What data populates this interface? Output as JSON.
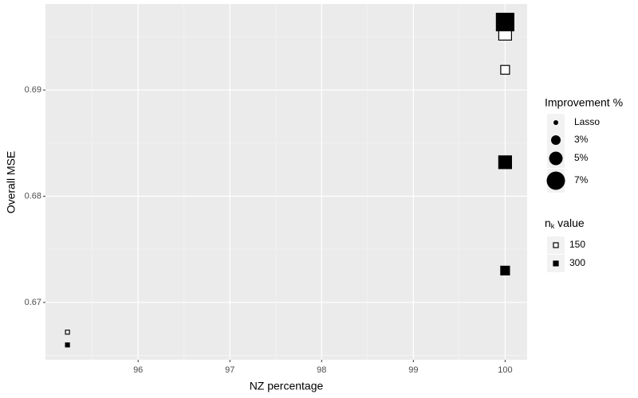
{
  "chart_data": {
    "type": "scatter",
    "x_label": "NZ percentage",
    "y_label": "Overall MSE",
    "xlim": [
      94.99,
      100.24
    ],
    "ylim": [
      0.6646,
      0.6981
    ],
    "xticks": [
      96,
      97,
      98,
      99,
      100
    ],
    "yticks": [
      0.67,
      0.68,
      0.69
    ],
    "grid": true,
    "size_legend": {
      "title": "Improvement %",
      "levels": [
        "Lasso",
        "3%",
        "5%",
        "7%"
      ]
    },
    "shape_legend": {
      "title": {
        "main": "n",
        "sub": "k",
        "rest": " value"
      }
    },
    "series": [
      {
        "name": "150",
        "color": "#000000",
        "filled": false,
        "x": [
          95.23,
          100,
          100
        ],
        "values": [
          0.6672,
          0.6953,
          0.6919
        ],
        "improvement": [
          "Lasso",
          "5%",
          "3%"
        ]
      },
      {
        "name": "300",
        "color": "#000000",
        "filled": true,
        "x": [
          95.23,
          100,
          100,
          100
        ],
        "values": [
          0.666,
          0.6964,
          0.6832,
          0.673
        ],
        "improvement": [
          "Lasso",
          "7%",
          "5%",
          "3%"
        ]
      }
    ]
  }
}
